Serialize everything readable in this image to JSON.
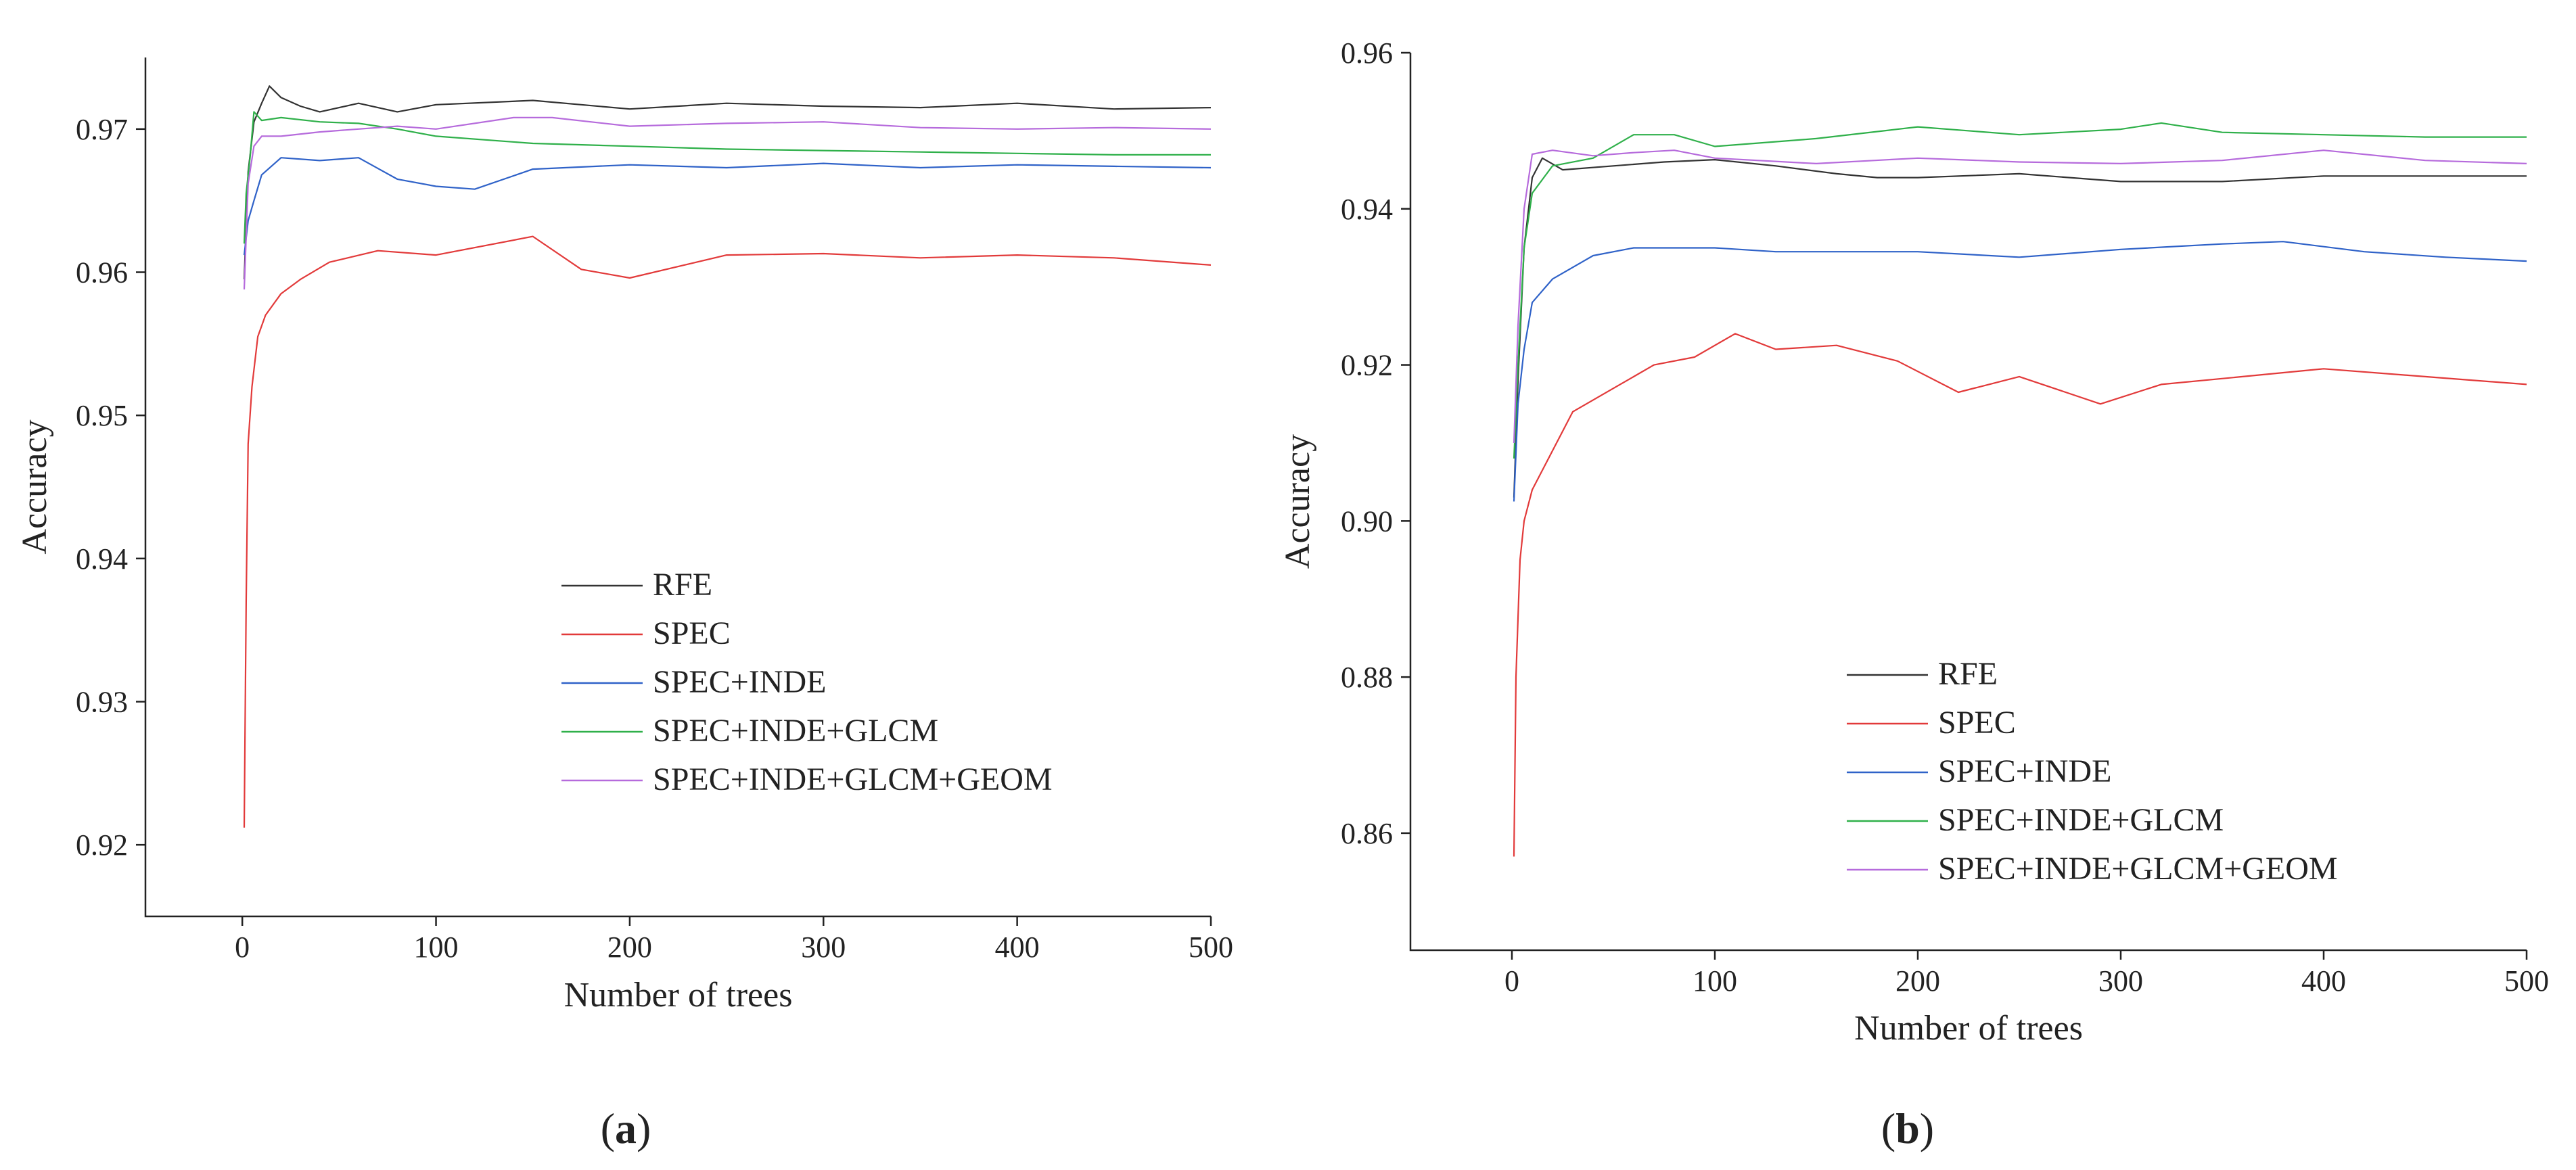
{
  "figure": {
    "panels": [
      {
        "id": "a",
        "label": "(a)",
        "label_letter": "a"
      },
      {
        "id": "b",
        "label": "(b)",
        "label_letter": "b"
      }
    ]
  },
  "colors": {
    "RFE": "#333333",
    "SPEC": "#e23a3a",
    "SPEC+INDE": "#2f62c8",
    "SPEC+INDE+GLCM": "#2fb04a",
    "SPEC+INDE+GLCM+GEOM": "#b66bdc"
  },
  "chart_data": [
    {
      "id": "a",
      "type": "line",
      "title": "",
      "xlabel": "Number of trees",
      "ylabel": "Accuracy",
      "xlim": [
        -50,
        500
      ],
      "ylim": [
        0.915,
        0.975
      ],
      "xticks": [
        0,
        100,
        200,
        300,
        400,
        500
      ],
      "yticks": [
        0.92,
        0.93,
        0.94,
        0.95,
        0.96,
        0.97
      ],
      "xtick_labels": [
        "0",
        "100",
        "200",
        "300",
        "400",
        "500"
      ],
      "ytick_labels": [
        "0.92",
        "0.93",
        "0.94",
        "0.95",
        "0.96",
        "0.97"
      ],
      "legend_position": "center-right",
      "series": [
        {
          "name": "RFE",
          "x": [
            1,
            3,
            6,
            10,
            14,
            20,
            30,
            40,
            60,
            80,
            100,
            150,
            200,
            250,
            300,
            350,
            400,
            450,
            500
          ],
          "y": [
            0.9595,
            0.967,
            0.9705,
            0.9718,
            0.973,
            0.9722,
            0.9716,
            0.9712,
            0.9718,
            0.9712,
            0.9717,
            0.972,
            0.9714,
            0.9718,
            0.9716,
            0.9715,
            0.9718,
            0.9714,
            0.9715
          ]
        },
        {
          "name": "SPEC",
          "x": [
            1,
            2,
            3,
            5,
            8,
            12,
            20,
            30,
            45,
            70,
            100,
            150,
            175,
            200,
            250,
            300,
            350,
            400,
            450,
            500
          ],
          "y": [
            0.9212,
            0.937,
            0.948,
            0.952,
            0.9555,
            0.957,
            0.9585,
            0.9595,
            0.9607,
            0.9615,
            0.9612,
            0.9625,
            0.9602,
            0.9596,
            0.9612,
            0.9613,
            0.961,
            0.9612,
            0.961,
            0.9605
          ]
        },
        {
          "name": "SPEC+INDE",
          "x": [
            1,
            3,
            6,
            10,
            20,
            40,
            60,
            80,
            100,
            120,
            150,
            200,
            250,
            300,
            350,
            400,
            450,
            500
          ],
          "y": [
            0.9612,
            0.9636,
            0.965,
            0.9668,
            0.968,
            0.9678,
            0.968,
            0.9665,
            0.966,
            0.9658,
            0.9672,
            0.9675,
            0.9673,
            0.9676,
            0.9673,
            0.9675,
            0.9674,
            0.9673
          ]
        },
        {
          "name": "SPEC+INDE+GLCM",
          "x": [
            1,
            2,
            4,
            6,
            10,
            20,
            40,
            60,
            80,
            100,
            150,
            200,
            250,
            300,
            350,
            400,
            450,
            500
          ],
          "y": [
            0.962,
            0.9655,
            0.968,
            0.9712,
            0.9706,
            0.9708,
            0.9705,
            0.9704,
            0.97,
            0.9695,
            0.969,
            0.9688,
            0.9686,
            0.9685,
            0.9684,
            0.9683,
            0.9682,
            0.9682
          ]
        },
        {
          "name": "SPEC+INDE+GLCM+GEOM",
          "x": [
            1,
            3,
            6,
            10,
            20,
            40,
            60,
            80,
            100,
            140,
            160,
            200,
            250,
            300,
            350,
            400,
            450,
            500
          ],
          "y": [
            0.9588,
            0.9662,
            0.9688,
            0.9695,
            0.9695,
            0.9698,
            0.97,
            0.9702,
            0.97,
            0.9708,
            0.9708,
            0.9702,
            0.9704,
            0.9705,
            0.9701,
            0.97,
            0.9701,
            0.97
          ]
        }
      ]
    },
    {
      "id": "b",
      "type": "line",
      "title": "",
      "xlabel": "Number of trees",
      "ylabel": "Accuracy",
      "xlim": [
        -50,
        500
      ],
      "ylim": [
        0.845,
        0.96
      ],
      "xticks": [
        0,
        100,
        200,
        300,
        400,
        500
      ],
      "yticks": [
        0.86,
        0.88,
        0.9,
        0.92,
        0.94,
        0.96
      ],
      "xtick_labels": [
        "0",
        "100",
        "200",
        "300",
        "400",
        "500"
      ],
      "ytick_labels": [
        "0.86",
        "0.88",
        "0.90",
        "0.92",
        "0.94",
        "0.96"
      ],
      "legend_position": "bottom-right",
      "series": [
        {
          "name": "RFE",
          "x": [
            1,
            3,
            6,
            10,
            15,
            25,
            50,
            75,
            100,
            130,
            160,
            180,
            200,
            250,
            300,
            350,
            400,
            450,
            500
          ],
          "y": [
            0.903,
            0.918,
            0.935,
            0.944,
            0.9465,
            0.945,
            0.9455,
            0.946,
            0.9463,
            0.9455,
            0.9445,
            0.944,
            0.944,
            0.9445,
            0.9435,
            0.9435,
            0.9442,
            0.9442,
            0.9442
          ]
        },
        {
          "name": "SPEC",
          "x": [
            1,
            2,
            4,
            6,
            10,
            20,
            30,
            50,
            70,
            90,
            110,
            130,
            160,
            190,
            220,
            250,
            290,
            320,
            360,
            400,
            450,
            500
          ],
          "y": [
            0.857,
            0.88,
            0.895,
            0.9,
            0.904,
            0.909,
            0.914,
            0.917,
            0.92,
            0.921,
            0.924,
            0.922,
            0.9225,
            0.9205,
            0.9165,
            0.9185,
            0.915,
            0.9175,
            0.9185,
            0.9195,
            0.9185,
            0.9175
          ]
        },
        {
          "name": "SPEC+INDE",
          "x": [
            1,
            3,
            6,
            10,
            20,
            40,
            60,
            100,
            130,
            200,
            250,
            300,
            350,
            380,
            420,
            460,
            500
          ],
          "y": [
            0.9025,
            0.915,
            0.922,
            0.928,
            0.931,
            0.934,
            0.935,
            0.935,
            0.9345,
            0.9345,
            0.9338,
            0.9348,
            0.9355,
            0.9358,
            0.9345,
            0.9338,
            0.9333
          ]
        },
        {
          "name": "SPEC+INDE+GLCM",
          "x": [
            1,
            3,
            6,
            10,
            20,
            40,
            60,
            80,
            100,
            150,
            200,
            250,
            300,
            320,
            350,
            400,
            450,
            500
          ],
          "y": [
            0.908,
            0.92,
            0.935,
            0.942,
            0.9455,
            0.9465,
            0.9495,
            0.9495,
            0.948,
            0.949,
            0.9505,
            0.9495,
            0.9502,
            0.951,
            0.9498,
            0.9495,
            0.9492,
            0.9492
          ]
        },
        {
          "name": "SPEC+INDE+GLCM+GEOM",
          "x": [
            1,
            3,
            6,
            10,
            20,
            40,
            60,
            80,
            100,
            150,
            200,
            250,
            300,
            350,
            400,
            450,
            500
          ],
          "y": [
            0.91,
            0.925,
            0.94,
            0.947,
            0.9475,
            0.9468,
            0.9472,
            0.9475,
            0.9465,
            0.9458,
            0.9465,
            0.946,
            0.9458,
            0.9462,
            0.9475,
            0.9462,
            0.9458
          ]
        }
      ]
    }
  ]
}
